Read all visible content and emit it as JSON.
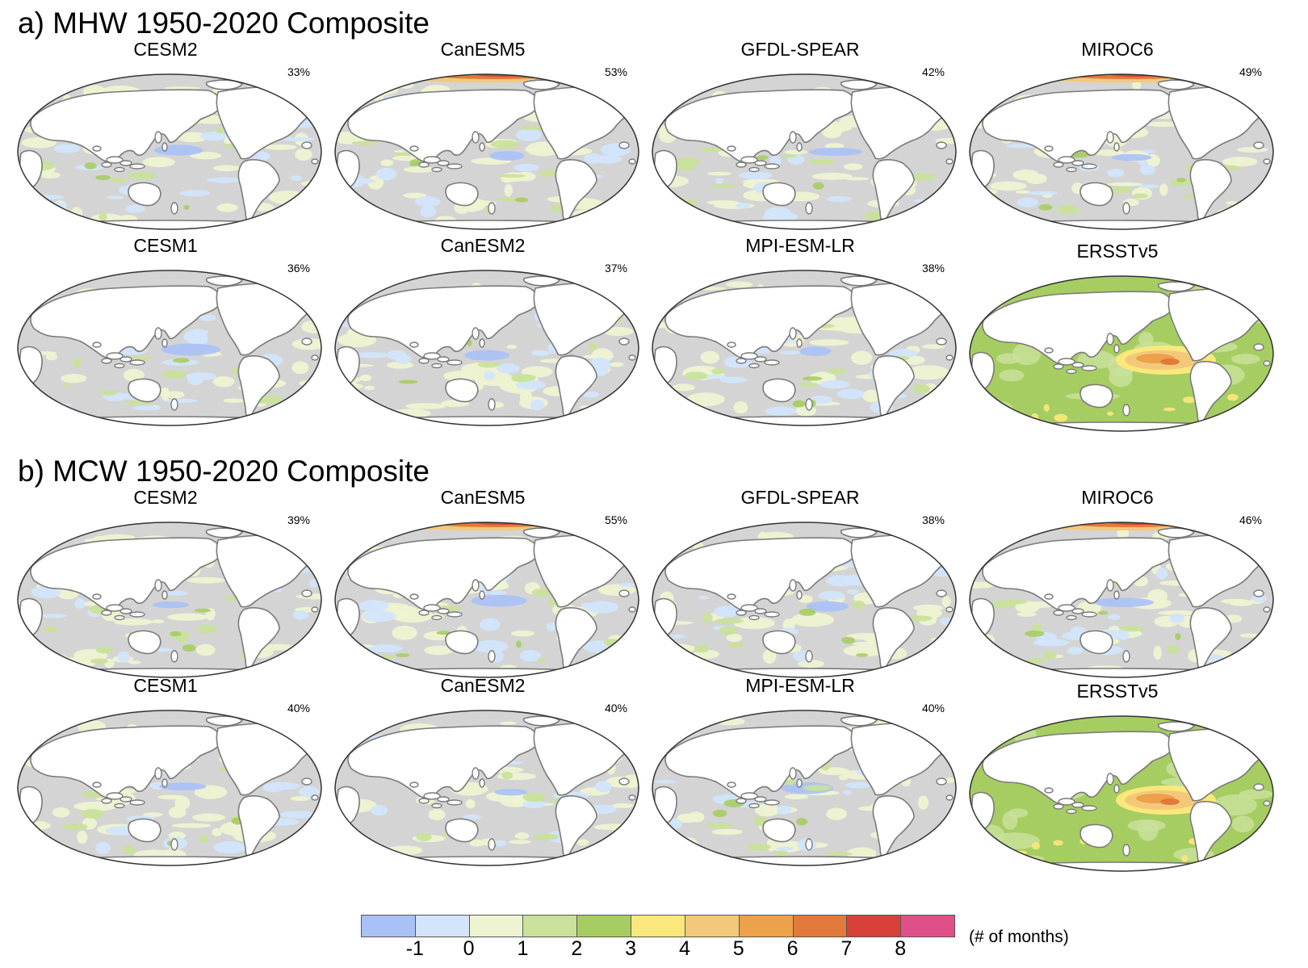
{
  "section_a": {
    "title": "a) MHW 1950-2020 Composite"
  },
  "section_b": {
    "title": "b) MCW 1950-2020 Composite"
  },
  "chart_data": [
    {
      "type": "heatmap",
      "title": "a) MHW 1950-2020 Composite",
      "panels": [
        {
          "name": "CESM2",
          "percent": "33%",
          "field": "model"
        },
        {
          "name": "CanESM5",
          "percent": "53%",
          "field": "model-arctic-high"
        },
        {
          "name": "GFDL-SPEAR",
          "percent": "42%",
          "field": "model"
        },
        {
          "name": "MIROC6",
          "percent": "49%",
          "field": "model-arctic-high"
        },
        {
          "name": "CESM1",
          "percent": "36%",
          "field": "model"
        },
        {
          "name": "CanESM2",
          "percent": "37%",
          "field": "model"
        },
        {
          "name": "MPI-ESM-LR",
          "percent": "38%",
          "field": "model"
        },
        {
          "name": "ERSSTv5",
          "percent": "",
          "field": "observed"
        }
      ]
    },
    {
      "type": "heatmap",
      "title": "b) MCW 1950-2020 Composite",
      "panels": [
        {
          "name": "CESM2",
          "percent": "39%",
          "field": "model"
        },
        {
          "name": "CanESM5",
          "percent": "55%",
          "field": "model-arctic-high"
        },
        {
          "name": "GFDL-SPEAR",
          "percent": "38%",
          "field": "model"
        },
        {
          "name": "MIROC6",
          "percent": "46%",
          "field": "model-arctic-high"
        },
        {
          "name": "CESM1",
          "percent": "40%",
          "field": "model"
        },
        {
          "name": "CanESM2",
          "percent": "40%",
          "field": "model"
        },
        {
          "name": "MPI-ESM-LR",
          "percent": "40%",
          "field": "model"
        },
        {
          "name": "ERSSTv5",
          "percent": "",
          "field": "observed"
        }
      ]
    }
  ],
  "colorbar": {
    "colors": [
      "#a9c1f7",
      "#d2e5fb",
      "#eef3d2",
      "#c9e19a",
      "#a6cd62",
      "#fbe87c",
      "#f4c87a",
      "#eda14a",
      "#e27a3b",
      "#d8403a",
      "#e05088"
    ],
    "ticks": [
      "-1",
      "0",
      "1",
      "2",
      "3",
      "4",
      "5",
      "6",
      "7",
      "8"
    ],
    "unit": "(# of months)"
  },
  "map_colors": {
    "ocean": "#d4d4d4",
    "land": "#ffffff",
    "coast": "#7a7a7a",
    "border": "#333333"
  }
}
